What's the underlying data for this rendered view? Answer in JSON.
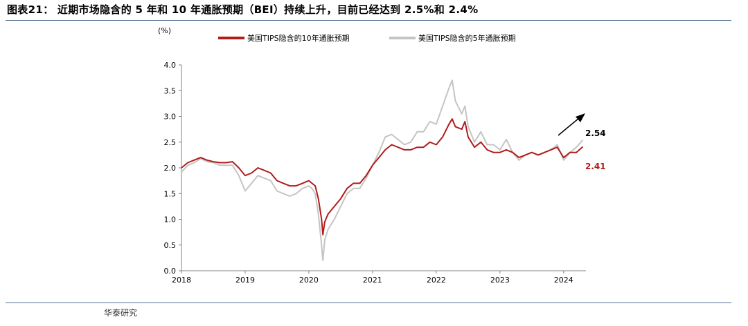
{
  "figure": {
    "title": "图表21： 近期市场隐含的 5 年和 10 年通胀预期（BEI）持续上升，目前已经达到 2.5%和 2.4%",
    "source": "华泰研究"
  },
  "colors": {
    "series10y": "#b01c1c",
    "series5y": "#c4c4c4",
    "rule": "#4f6b8f",
    "axis": "#808080"
  },
  "chart_data": {
    "type": "line",
    "unit": "(%)",
    "ylim": [
      0,
      4.0
    ],
    "yticks": [
      0,
      0.5,
      1.0,
      1.5,
      2.0,
      2.5,
      3.0,
      3.5,
      4.0
    ],
    "ytick_labels": [
      "0.0",
      "0.5",
      "1.0",
      "1.5",
      "2.0",
      "2.5",
      "3.0",
      "3.5",
      "4.0"
    ],
    "xlim": [
      2018.0,
      2024.35
    ],
    "xticks": [
      2018,
      2019,
      2020,
      2021,
      2022,
      2023,
      2024
    ],
    "xtick_labels": [
      "2018",
      "2019",
      "2020",
      "2021",
      "2022",
      "2023",
      "2024"
    ],
    "grid": false,
    "legend_position": "top",
    "series": [
      {
        "name": "美国TIPS隐含的10年通胀预期",
        "x": [
          2018.0,
          2018.1,
          2018.2,
          2018.3,
          2018.4,
          2018.5,
          2018.6,
          2018.7,
          2018.8,
          2018.9,
          2019.0,
          2019.1,
          2019.2,
          2019.3,
          2019.4,
          2019.5,
          2019.6,
          2019.7,
          2019.8,
          2019.9,
          2020.0,
          2020.05,
          2020.1,
          2020.15,
          2020.2,
          2020.22,
          2020.25,
          2020.3,
          2020.4,
          2020.5,
          2020.6,
          2020.7,
          2020.8,
          2020.9,
          2021.0,
          2021.1,
          2021.2,
          2021.3,
          2021.4,
          2021.5,
          2021.6,
          2021.7,
          2021.8,
          2021.9,
          2022.0,
          2022.1,
          2022.2,
          2022.25,
          2022.3,
          2022.4,
          2022.45,
          2022.5,
          2022.6,
          2022.7,
          2022.8,
          2022.9,
          2023.0,
          2023.1,
          2023.2,
          2023.3,
          2023.4,
          2023.5,
          2023.6,
          2023.7,
          2023.8,
          2023.9,
          2024.0,
          2024.1,
          2024.2,
          2024.3
        ],
        "values": [
          2.0,
          2.1,
          2.15,
          2.2,
          2.15,
          2.12,
          2.1,
          2.1,
          2.12,
          2.0,
          1.85,
          1.9,
          2.0,
          1.95,
          1.9,
          1.75,
          1.7,
          1.65,
          1.65,
          1.7,
          1.75,
          1.7,
          1.65,
          1.4,
          1.0,
          0.7,
          0.95,
          1.1,
          1.25,
          1.4,
          1.6,
          1.7,
          1.7,
          1.85,
          2.05,
          2.2,
          2.35,
          2.45,
          2.4,
          2.35,
          2.35,
          2.4,
          2.4,
          2.5,
          2.45,
          2.6,
          2.85,
          2.95,
          2.8,
          2.75,
          2.9,
          2.6,
          2.4,
          2.5,
          2.35,
          2.3,
          2.3,
          2.35,
          2.3,
          2.2,
          2.25,
          2.3,
          2.25,
          2.3,
          2.35,
          2.4,
          2.2,
          2.3,
          2.3,
          2.41
        ]
      },
      {
        "name": "美国TIPS隐含的5年通胀预期",
        "x": [
          2018.0,
          2018.1,
          2018.2,
          2018.3,
          2018.4,
          2018.5,
          2018.6,
          2018.7,
          2018.8,
          2018.9,
          2019.0,
          2019.1,
          2019.2,
          2019.3,
          2019.4,
          2019.5,
          2019.6,
          2019.7,
          2019.8,
          2019.9,
          2020.0,
          2020.05,
          2020.1,
          2020.15,
          2020.2,
          2020.22,
          2020.25,
          2020.3,
          2020.4,
          2020.5,
          2020.6,
          2020.7,
          2020.8,
          2020.9,
          2021.0,
          2021.1,
          2021.2,
          2021.3,
          2021.4,
          2021.5,
          2021.6,
          2021.7,
          2021.8,
          2021.9,
          2022.0,
          2022.1,
          2022.2,
          2022.25,
          2022.3,
          2022.4,
          2022.45,
          2022.5,
          2022.6,
          2022.7,
          2022.8,
          2022.9,
          2023.0,
          2023.1,
          2023.2,
          2023.3,
          2023.4,
          2023.5,
          2023.6,
          2023.7,
          2023.8,
          2023.9,
          2024.0,
          2024.1,
          2024.2,
          2024.3
        ],
        "values": [
          1.92,
          2.05,
          2.1,
          2.18,
          2.12,
          2.1,
          2.05,
          2.05,
          2.05,
          1.85,
          1.55,
          1.7,
          1.85,
          1.8,
          1.75,
          1.55,
          1.5,
          1.45,
          1.5,
          1.6,
          1.65,
          1.6,
          1.5,
          1.1,
          0.5,
          0.2,
          0.6,
          0.8,
          1.0,
          1.25,
          1.5,
          1.6,
          1.6,
          1.8,
          2.05,
          2.3,
          2.6,
          2.65,
          2.55,
          2.45,
          2.5,
          2.7,
          2.7,
          2.9,
          2.85,
          3.2,
          3.55,
          3.7,
          3.3,
          3.05,
          3.2,
          2.8,
          2.5,
          2.7,
          2.45,
          2.45,
          2.35,
          2.55,
          2.3,
          2.15,
          2.25,
          2.3,
          2.25,
          2.3,
          2.35,
          2.45,
          2.15,
          2.3,
          2.4,
          2.54
        ]
      }
    ],
    "annotations": [
      {
        "text": "2.54",
        "value": 2.54,
        "series": "美国TIPS隐含的5年通胀预期"
      },
      {
        "text": "2.41",
        "value": 2.41,
        "series": "美国TIPS隐含的10年通胀预期"
      }
    ]
  }
}
